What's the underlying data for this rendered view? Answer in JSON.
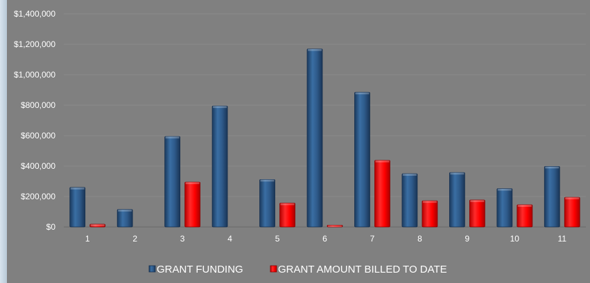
{
  "chart_data": {
    "type": "bar",
    "categories": [
      "1",
      "2",
      "3",
      "4",
      "5",
      "6",
      "7",
      "8",
      "9",
      "10",
      "11"
    ],
    "series": [
      {
        "name": "GRANT FUNDING",
        "color": "#2e5a8a",
        "values": [
          260000,
          115000,
          595000,
          795000,
          312000,
          1170000,
          885000,
          350000,
          358000,
          252000,
          398000
        ]
      },
      {
        "name": "GRANT AMOUNT BILLED TO DATE",
        "color": "#ff0000",
        "values": [
          18000,
          0,
          295000,
          0,
          157000,
          12000,
          438000,
          172000,
          177000,
          146000,
          195000
        ]
      }
    ],
    "yticks": [
      "$0",
      "$200,000",
      "$400,000",
      "$600,000",
      "$800,000",
      "$1,000,000",
      "$1,200,000",
      "$1,400,000"
    ],
    "ylim": [
      0,
      1400000
    ],
    "grid": true,
    "legend_position": "bottom"
  }
}
